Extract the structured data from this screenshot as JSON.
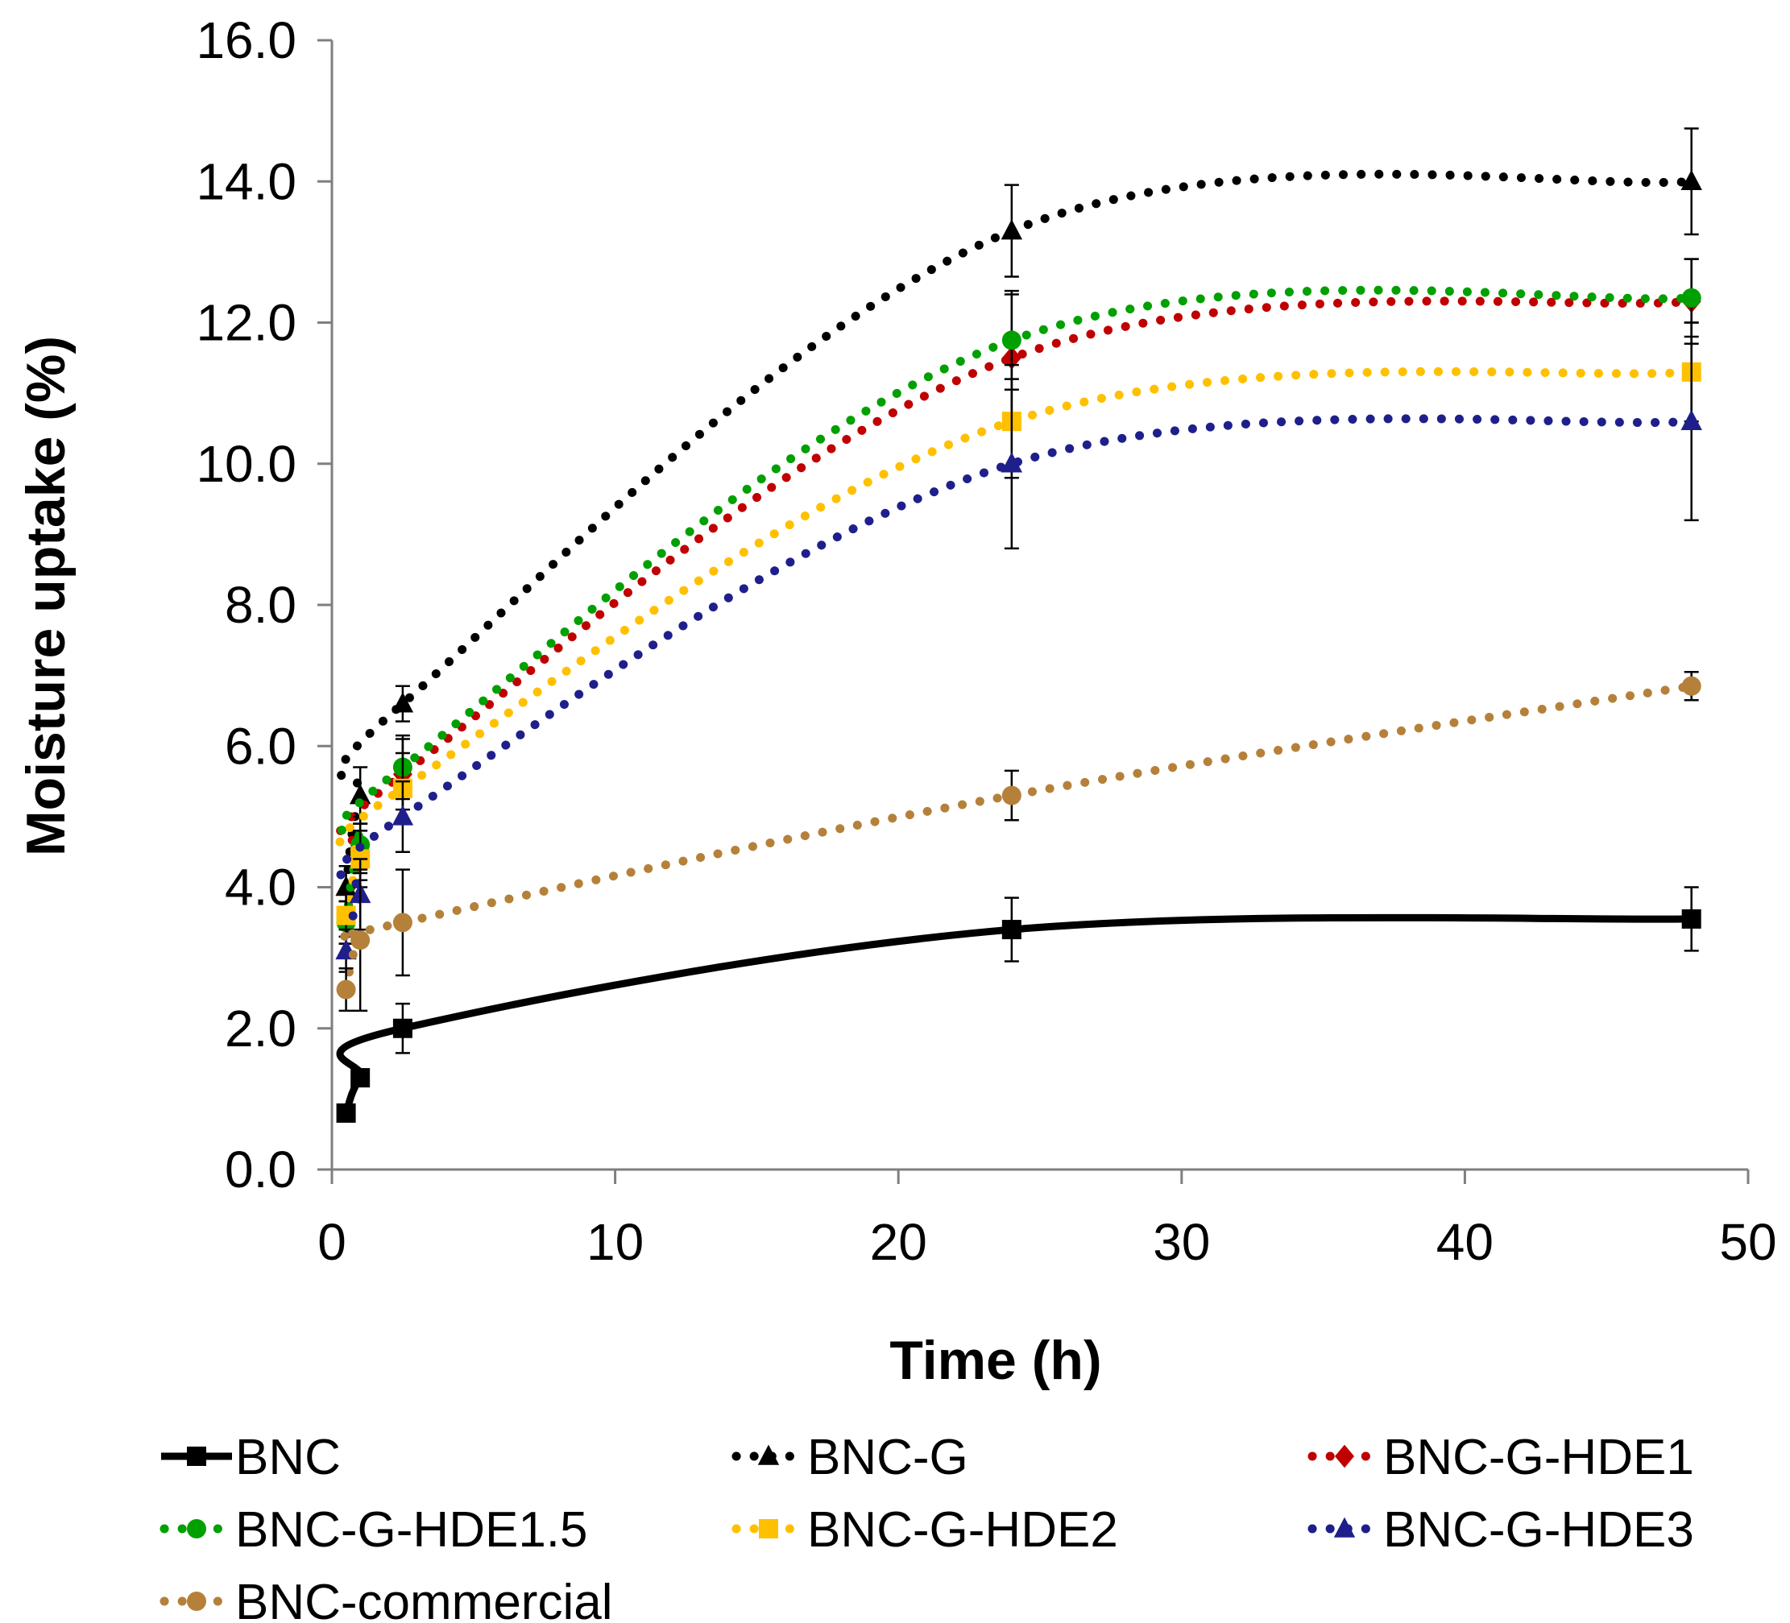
{
  "chart_data": {
    "type": "line",
    "title": "",
    "xlabel": "Time (h)",
    "ylabel": "Moisture uptake (%)",
    "xlim": [
      0,
      50
    ],
    "ylim": [
      0,
      16
    ],
    "xticks": [
      "0",
      "10",
      "20",
      "30",
      "40",
      "50"
    ],
    "yticks": [
      "0.0",
      "2.0",
      "4.0",
      "6.0",
      "8.0",
      "10.0",
      "12.0",
      "14.0",
      "16.0"
    ],
    "grid": false,
    "legend_position": "bottom",
    "x": [
      0.5,
      1,
      2.5,
      24,
      48
    ],
    "series": [
      {
        "name": "BNC",
        "color": "#000000",
        "marker": "square",
        "line": "solid",
        "values": [
          0.8,
          1.3,
          2.0,
          3.4,
          3.55
        ],
        "errors": [
          0.08,
          0.12,
          0.35,
          0.45,
          0.45
        ]
      },
      {
        "name": "BNC-G",
        "color": "#000000",
        "marker": "triangle",
        "line": "dotted",
        "values": [
          4.0,
          5.3,
          6.6,
          13.3,
          14.0
        ],
        "errors": [
          0.3,
          0.4,
          0.25,
          0.65,
          0.75
        ]
      },
      {
        "name": "BNC-G-HDE1",
        "color": "#c00000",
        "marker": "diamond",
        "line": "dotted",
        "values": [
          3.5,
          4.5,
          5.6,
          11.5,
          12.3
        ],
        "errors": [
          0.3,
          0.4,
          0.5,
          0.9,
          0.6
        ]
      },
      {
        "name": "BNC-G-HDE1.5",
        "color": "#00a000",
        "marker": "circle",
        "line": "dotted",
        "values": [
          3.5,
          4.6,
          5.7,
          11.75,
          12.35
        ],
        "errors": [
          0.3,
          0.4,
          0.45,
          0.7,
          0.55
        ]
      },
      {
        "name": "BNC-G-HDE2",
        "color": "#ffc000",
        "marker": "square",
        "line": "dotted",
        "values": [
          3.6,
          4.4,
          5.4,
          10.6,
          11.3
        ],
        "errors": [
          0.3,
          0.4,
          0.5,
          0.8,
          0.7
        ]
      },
      {
        "name": "BNC-G-HDE3",
        "color": "#1f1f8c",
        "marker": "triangle",
        "line": "dotted",
        "values": [
          3.1,
          3.9,
          5.0,
          10.0,
          10.6
        ],
        "errors": [
          0.3,
          0.5,
          0.5,
          1.2,
          1.4
        ]
      },
      {
        "name": "BNC-commercial",
        "color": "#b5813a",
        "marker": "circle",
        "line": "dotted",
        "values": [
          2.55,
          3.25,
          3.5,
          5.3,
          6.85
        ],
        "errors": [
          0.3,
          1.0,
          0.75,
          0.35,
          0.2
        ]
      }
    ]
  }
}
